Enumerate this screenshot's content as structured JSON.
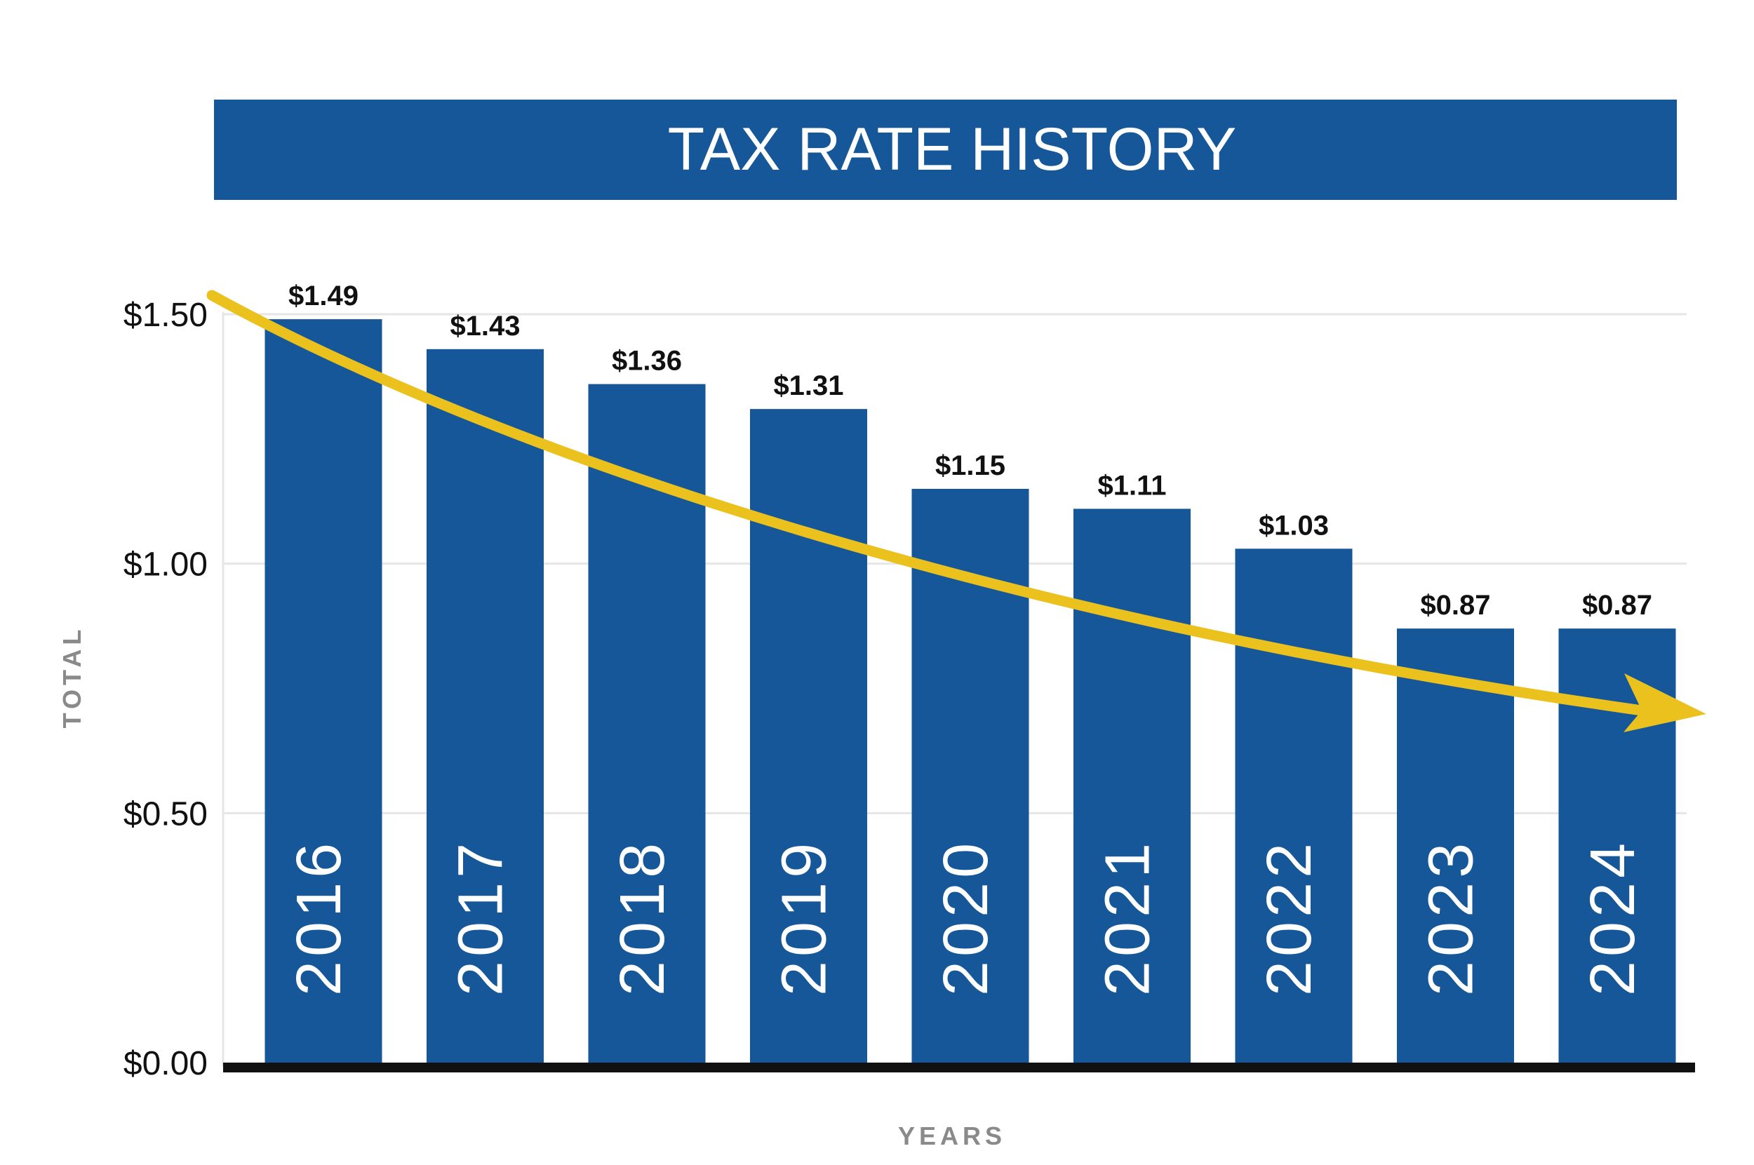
{
  "chart_data": {
    "type": "bar",
    "title": "TAX RATE HISTORY",
    "xlabel": "YEARS",
    "ylabel": "TOTAL",
    "categories": [
      "2016",
      "2017",
      "2018",
      "2019",
      "2020",
      "2021",
      "2022",
      "2023",
      "2024"
    ],
    "values": [
      1.49,
      1.43,
      1.36,
      1.31,
      1.15,
      1.11,
      1.03,
      0.87,
      0.87
    ],
    "value_labels": [
      "$1.49",
      "$1.43",
      "$1.36",
      "$1.31",
      "$1.15",
      "$1.11",
      "$1.03",
      "$0.87",
      "$0.87"
    ],
    "yticks": [
      0,
      0.5,
      1.0,
      1.5
    ],
    "ytick_labels": [
      "$0.00",
      "$0.50",
      "$1.00",
      "$1.50"
    ],
    "ylim": [
      0,
      1.5
    ],
    "grid": true,
    "annotations": [
      {
        "type": "trend-arrow",
        "direction": "down",
        "color": "#EBC11D"
      }
    ],
    "colors": {
      "bar": "#155799",
      "title_bar": "#155799",
      "title_text": "#ffffff",
      "year_text": "#ffffff",
      "grid": "#e6e6e6",
      "axis_baseline": "#111111",
      "axis_label": "#8a8a8a",
      "trend_arrow": "#EBC11D"
    }
  }
}
